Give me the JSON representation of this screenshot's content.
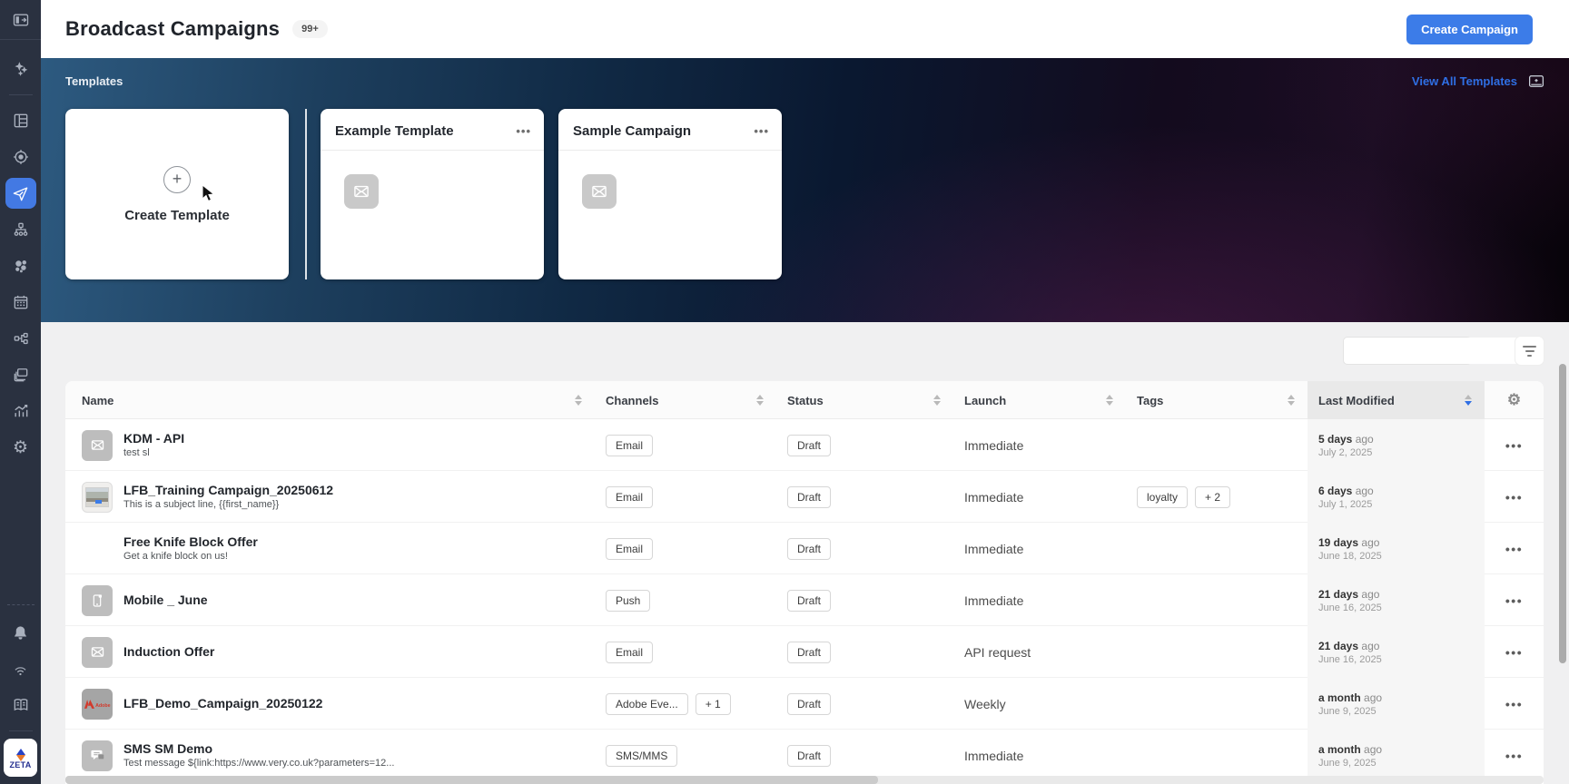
{
  "header": {
    "title": "Broadcast Campaigns",
    "count_badge": "99+",
    "create_button_label": "Create Campaign"
  },
  "sidebar": {
    "logo_text": "ZETA",
    "icons": [
      "panel-toggle-icon",
      "sparkles-icon",
      "dashboard-icon",
      "target-icon",
      "send-campaigns-icon",
      "hierarchy-icon",
      "audience-icon",
      "calendar-icon",
      "journey-icon",
      "assets-icon",
      "analytics-icon",
      "gear-icon",
      "bell-icon",
      "signal-icon",
      "book-icon"
    ]
  },
  "templates": {
    "section_label": "Templates",
    "view_all_label": "View All Templates",
    "create_card_label": "Create Template",
    "card_menu_label": "•••",
    "cards": [
      {
        "title": "Example Template"
      },
      {
        "title": "Sample Campaign"
      }
    ]
  },
  "toolbar": {
    "search_placeholder": ""
  },
  "table": {
    "columns": [
      {
        "label": "Name"
      },
      {
        "label": "Channels"
      },
      {
        "label": "Status"
      },
      {
        "label": "Launch"
      },
      {
        "label": "Tags"
      },
      {
        "label": "Last Modified",
        "sorted": "desc"
      }
    ],
    "row_menu_label": "•••",
    "rows": [
      {
        "name": "KDM - API",
        "subtitle": "test sl",
        "thumb": "email-envelope",
        "channels": [
          "Email"
        ],
        "status": "Draft",
        "launch": "Immediate",
        "tags": [],
        "modified_rel": "5 days",
        "modified_suffix": "ago",
        "modified_date": "July 2, 2025"
      },
      {
        "name": "LFB_Training Campaign_20250612",
        "subtitle": "This is a subject line, {{first_name}}",
        "thumb": "photo",
        "channels": [
          "Email"
        ],
        "status": "Draft",
        "launch": "Immediate",
        "tags": [
          "loyalty",
          "+ 2"
        ],
        "modified_rel": "6 days",
        "modified_suffix": "ago",
        "modified_date": "July 1, 2025"
      },
      {
        "name": "Free Knife Block Offer",
        "subtitle": "Get a knife block on us!",
        "thumb": "none",
        "channels": [
          "Email"
        ],
        "status": "Draft",
        "launch": "Immediate",
        "tags": [],
        "modified_rel": "19 days",
        "modified_suffix": "ago",
        "modified_date": "June 18, 2025"
      },
      {
        "name": "Mobile _ June",
        "subtitle": "",
        "thumb": "mobile-push",
        "channels": [
          "Push"
        ],
        "status": "Draft",
        "launch": "Immediate",
        "tags": [],
        "modified_rel": "21 days",
        "modified_suffix": "ago",
        "modified_date": "June 16, 2025"
      },
      {
        "name": "Induction Offer",
        "subtitle": "",
        "thumb": "email-envelope",
        "channels": [
          "Email"
        ],
        "status": "Draft",
        "launch": "API request",
        "tags": [],
        "modified_rel": "21 days",
        "modified_suffix": "ago",
        "modified_date": "June 16, 2025"
      },
      {
        "name": "LFB_Demo_Campaign_20250122",
        "subtitle": "",
        "thumb": "adobe",
        "channels": [
          "Adobe Eve...",
          "+ 1"
        ],
        "status": "Draft",
        "launch": "Weekly",
        "tags": [],
        "modified_rel": "a month",
        "modified_suffix": "ago",
        "modified_date": "June 9, 2025"
      },
      {
        "name": "SMS SM Demo",
        "subtitle": "Test message ${link:https://www.very.co.uk?parameters=12...",
        "thumb": "sms-chat",
        "channels": [
          "SMS/MMS"
        ],
        "status": "Draft",
        "launch": "Immediate",
        "tags": [],
        "modified_rel": "a month",
        "modified_suffix": "ago",
        "modified_date": "June 9, 2025"
      }
    ]
  },
  "colors": {
    "accent_blue": "#3c7ce8",
    "link_blue": "#2f6fe4",
    "sidebar_active": "#4379e3",
    "sidebar_bg": "#2a3140"
  }
}
